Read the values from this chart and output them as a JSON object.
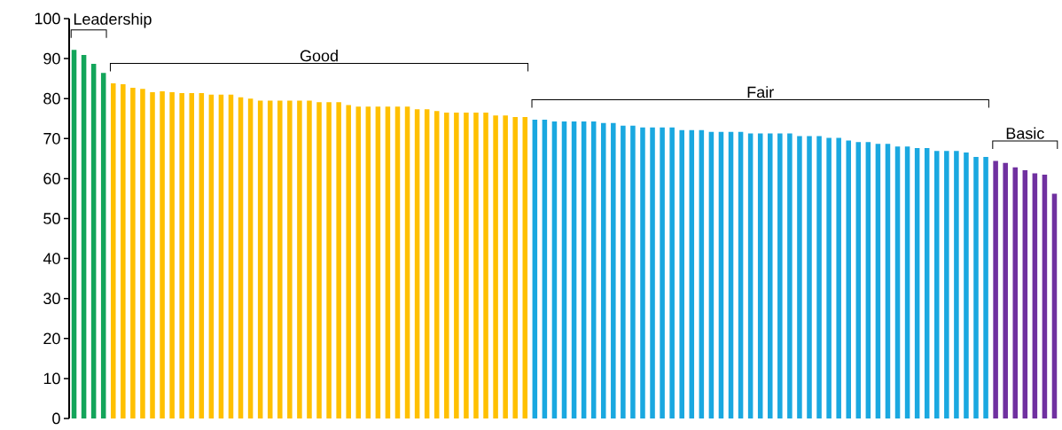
{
  "chart_data": {
    "type": "bar",
    "categories": [
      null,
      null,
      null,
      null,
      null,
      null,
      null,
      null,
      null,
      null,
      null,
      null,
      null,
      null,
      null,
      null,
      null,
      null,
      null,
      null,
      null,
      null,
      null,
      null,
      null,
      null,
      null,
      null,
      null,
      null,
      null,
      null,
      null,
      null,
      null,
      null,
      null,
      null,
      null,
      null,
      null,
      null,
      null,
      null,
      null,
      null,
      null,
      null,
      null,
      null,
      null,
      null,
      null,
      null,
      null,
      null,
      null,
      null,
      null,
      null,
      null,
      null,
      null,
      null,
      null,
      null,
      null,
      null,
      null,
      null,
      null,
      null,
      null,
      null,
      null,
      null,
      null,
      null,
      null,
      null,
      null,
      null,
      null,
      null,
      null,
      null,
      null,
      null,
      null,
      null,
      null,
      null,
      null,
      null,
      null,
      null,
      null,
      null,
      null,
      null,
      null
    ],
    "values": [
      92.2,
      90.9,
      88.7,
      86.4,
      83.8,
      83.6,
      82.7,
      82.4,
      81.6,
      81.8,
      81.6,
      81.4,
      81.4,
      81.4,
      81.0,
      81.0,
      81.0,
      80.3,
      80.0,
      79.5,
      79.5,
      79.5,
      79.5,
      79.5,
      79.5,
      79.1,
      79.1,
      79.1,
      78.4,
      78.0,
      78.0,
      78.0,
      78.0,
      78.0,
      78.0,
      77.3,
      77.3,
      76.9,
      76.5,
      76.5,
      76.5,
      76.5,
      76.5,
      75.8,
      75.8,
      75.4,
      75.4,
      74.7,
      74.7,
      74.3,
      74.3,
      74.3,
      74.3,
      74.3,
      73.9,
      73.9,
      73.2,
      73.2,
      72.8,
      72.8,
      72.8,
      72.8,
      72.1,
      72.1,
      72.1,
      71.7,
      71.7,
      71.7,
      71.7,
      71.3,
      71.3,
      71.3,
      71.3,
      71.3,
      70.6,
      70.6,
      70.6,
      70.2,
      70.2,
      69.5,
      69.1,
      69.1,
      68.7,
      68.7,
      68.0,
      68.0,
      67.6,
      67.6,
      66.9,
      66.9,
      66.9,
      66.5,
      65.4,
      65.4,
      64.4,
      63.9,
      62.8,
      62.1,
      61.3,
      61.0,
      56.2
    ],
    "colors": [
      "#13a55a",
      "#13a55a",
      "#13a55a",
      "#13a55a",
      "#ffc000",
      "#ffc000",
      "#ffc000",
      "#ffc000",
      "#ffc000",
      "#ffc000",
      "#ffc000",
      "#ffc000",
      "#ffc000",
      "#ffc000",
      "#ffc000",
      "#ffc000",
      "#ffc000",
      "#ffc000",
      "#ffc000",
      "#ffc000",
      "#ffc000",
      "#ffc000",
      "#ffc000",
      "#ffc000",
      "#ffc000",
      "#ffc000",
      "#ffc000",
      "#ffc000",
      "#ffc000",
      "#ffc000",
      "#ffc000",
      "#ffc000",
      "#ffc000",
      "#ffc000",
      "#ffc000",
      "#ffc000",
      "#ffc000",
      "#ffc000",
      "#ffc000",
      "#ffc000",
      "#ffc000",
      "#ffc000",
      "#ffc000",
      "#ffc000",
      "#ffc000",
      "#ffc000",
      "#ffc000",
      "#1aa8e0",
      "#1aa8e0",
      "#1aa8e0",
      "#1aa8e0",
      "#1aa8e0",
      "#1aa8e0",
      "#1aa8e0",
      "#1aa8e0",
      "#1aa8e0",
      "#1aa8e0",
      "#1aa8e0",
      "#1aa8e0",
      "#1aa8e0",
      "#1aa8e0",
      "#1aa8e0",
      "#1aa8e0",
      "#1aa8e0",
      "#1aa8e0",
      "#1aa8e0",
      "#1aa8e0",
      "#1aa8e0",
      "#1aa8e0",
      "#1aa8e0",
      "#1aa8e0",
      "#1aa8e0",
      "#1aa8e0",
      "#1aa8e0",
      "#1aa8e0",
      "#1aa8e0",
      "#1aa8e0",
      "#1aa8e0",
      "#1aa8e0",
      "#1aa8e0",
      "#1aa8e0",
      "#1aa8e0",
      "#1aa8e0",
      "#1aa8e0",
      "#1aa8e0",
      "#1aa8e0",
      "#1aa8e0",
      "#1aa8e0",
      "#1aa8e0",
      "#1aa8e0",
      "#1aa8e0",
      "#1aa8e0",
      "#1aa8e0",
      "#1aa8e0",
      "#7030a0",
      "#7030a0",
      "#7030a0",
      "#7030a0",
      "#7030a0",
      "#7030a0",
      "#7030a0"
    ],
    "annotations": [
      "Leadership",
      "Good",
      "Fair",
      "Basic"
    ],
    "ylim": [
      0,
      100
    ],
    "yticks": [
      0,
      10,
      20,
      30,
      40,
      50,
      60,
      70,
      80,
      90,
      100
    ],
    "tick_labels": "y"
  }
}
